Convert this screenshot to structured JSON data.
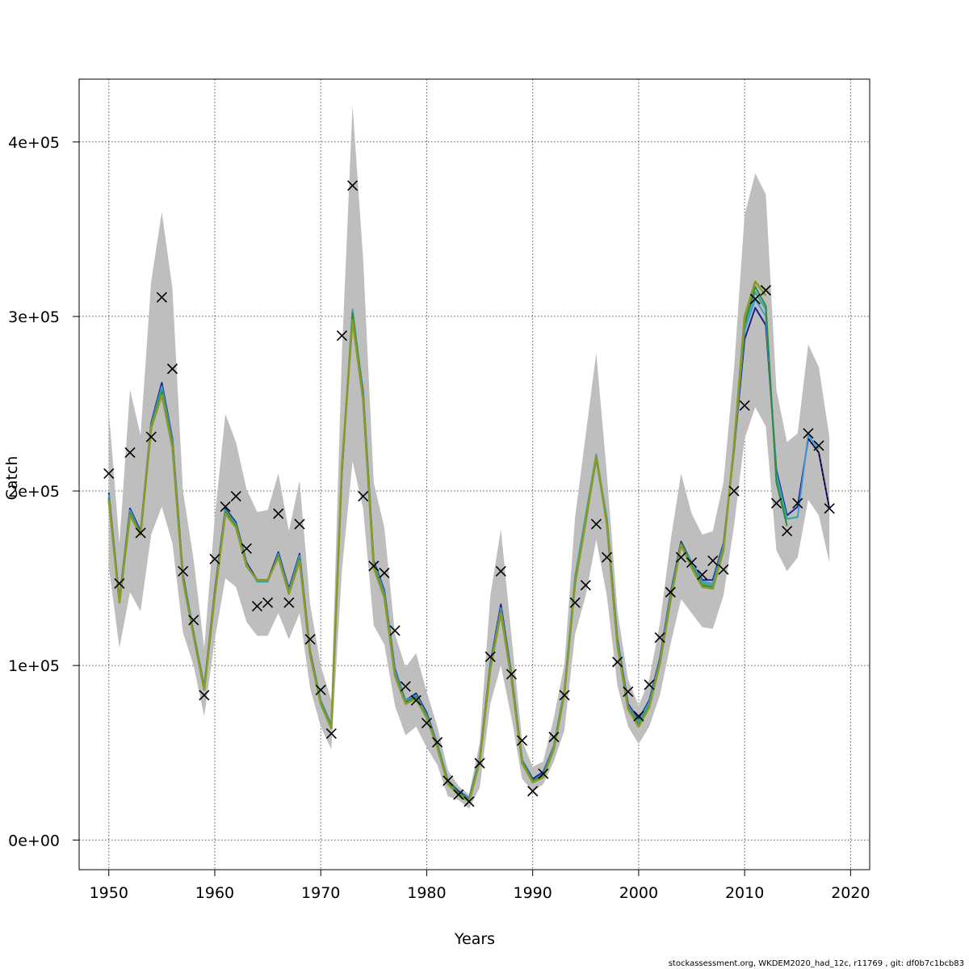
{
  "chart_data": {
    "type": "line",
    "title": "",
    "xlabel": "Years",
    "ylabel": "Catch",
    "xlim": [
      1947.2,
      2021.8
    ],
    "ylim": [
      -17000,
      436000
    ],
    "x_ticks": [
      1950,
      1960,
      1970,
      1980,
      1990,
      2000,
      2010,
      2020
    ],
    "y_ticks": [
      0,
      100000,
      200000,
      300000,
      400000
    ],
    "x_tick_labels": [
      "1950",
      "1960",
      "1970",
      "1980",
      "1990",
      "2000",
      "2010",
      "2020"
    ],
    "y_tick_labels": [
      "0e+00",
      "1e+05",
      "2e+05",
      "3e+05",
      "4e+05"
    ],
    "grid": true,
    "colors": {
      "band": "#bebebe",
      "observed": "#000000",
      "series": [
        "#1f1f8a",
        "#3a9bd6",
        "#3aa79a",
        "#2e8b3a",
        "#8a9a2a"
      ]
    },
    "confidence_band": {
      "x": [
        1950,
        1951,
        1952,
        1953,
        1954,
        1955,
        1956,
        1957,
        1958,
        1959,
        1960,
        1961,
        1962,
        1963,
        1964,
        1965,
        1966,
        1967,
        1968,
        1969,
        1970,
        1971,
        1972,
        1973,
        1974,
        1975,
        1976,
        1977,
        1978,
        1979,
        1980,
        1981,
        1982,
        1983,
        1984,
        1985,
        1986,
        1987,
        1988,
        1989,
        1990,
        1991,
        1992,
        1993,
        1994,
        1995,
        1996,
        1997,
        1998,
        1999,
        2000,
        2001,
        2002,
        2003,
        2004,
        2005,
        2006,
        2007,
        2008,
        2009,
        2010,
        2011,
        2012,
        2013,
        2014,
        2015,
        2016,
        2017,
        2018
      ],
      "lower": [
        157000,
        110000,
        142000,
        131000,
        175000,
        191000,
        170000,
        119000,
        100000,
        71000,
        115000,
        150000,
        145000,
        125000,
        117000,
        117000,
        130000,
        115000,
        130000,
        87000,
        65000,
        52000,
        155000,
        217000,
        190000,
        123000,
        112000,
        77000,
        60000,
        65000,
        53000,
        43000,
        25000,
        23000,
        18000,
        30000,
        78000,
        100000,
        70000,
        35000,
        28000,
        32000,
        45000,
        63000,
        118000,
        140000,
        172000,
        140000,
        88000,
        65000,
        55000,
        65000,
        83000,
        112000,
        138000,
        130000,
        122000,
        121000,
        140000,
        180000,
        230000,
        248000,
        237000,
        166000,
        154000,
        162000,
        195000,
        186000,
        159000
      ],
      "upper": [
        246000,
        170000,
        258000,
        232000,
        320000,
        360000,
        316000,
        200000,
        161000,
        110000,
        185000,
        244000,
        228000,
        201000,
        188000,
        189000,
        210000,
        177000,
        206000,
        135000,
        100000,
        80000,
        280000,
        421000,
        333000,
        205000,
        179000,
        118000,
        99000,
        107000,
        85000,
        65000,
        40000,
        31000,
        26000,
        56000,
        140000,
        178000,
        117000,
        57000,
        42000,
        45000,
        70000,
        101000,
        185000,
        232000,
        279000,
        210000,
        131000,
        92000,
        77000,
        92000,
        124000,
        171000,
        210000,
        187000,
        175000,
        177000,
        205000,
        270000,
        358000,
        382000,
        370000,
        258000,
        228000,
        233000,
        284000,
        271000,
        231000
      ]
    },
    "observed": {
      "name": "",
      "x": [
        1950,
        1951,
        1952,
        1953,
        1954,
        1955,
        1956,
        1957,
        1958,
        1959,
        1960,
        1961,
        1962,
        1963,
        1964,
        1965,
        1966,
        1967,
        1968,
        1969,
        1970,
        1971,
        1972,
        1973,
        1974,
        1975,
        1976,
        1977,
        1978,
        1979,
        1980,
        1981,
        1982,
        1983,
        1984,
        1985,
        1986,
        1987,
        1988,
        1989,
        1990,
        1991,
        1992,
        1993,
        1994,
        1995,
        1996,
        1997,
        1998,
        1999,
        2000,
        2001,
        2002,
        2003,
        2004,
        2005,
        2006,
        2007,
        2008,
        2009,
        2010,
        2011,
        2012,
        2013,
        2014,
        2015,
        2016,
        2017,
        2018
      ],
      "values": [
        210000,
        147000,
        222000,
        176000,
        231000,
        311000,
        270000,
        154000,
        126000,
        83000,
        161000,
        191000,
        197000,
        167000,
        134000,
        136000,
        187000,
        136000,
        181000,
        115000,
        86000,
        61000,
        289000,
        375000,
        197000,
        157000,
        153000,
        120000,
        88000,
        80000,
        67000,
        56000,
        34000,
        26000,
        22000,
        44000,
        105000,
        154000,
        95000,
        57000,
        28000,
        38000,
        59000,
        83000,
        136000,
        146000,
        181000,
        162000,
        102000,
        85000,
        71000,
        89000,
        116000,
        142000,
        162000,
        159000,
        152000,
        160000,
        155000,
        200000,
        249000,
        310000,
        315000,
        193000,
        177000,
        193000,
        233000,
        226000,
        190000
      ]
    },
    "series": [
      {
        "name": "",
        "x": [
          1950,
          1951,
          1952,
          1953,
          1954,
          1955,
          1956,
          1957,
          1958,
          1959,
          1960,
          1961,
          1962,
          1963,
          1964,
          1965,
          1966,
          1967,
          1968,
          1969,
          1970,
          1971,
          1972,
          1973,
          1974,
          1975,
          1976,
          1977,
          1978,
          1979,
          1980,
          1981,
          1982,
          1983,
          1984,
          1985,
          1986,
          1987,
          1988,
          1989,
          1990,
          1991,
          1992,
          1993,
          1994,
          1995,
          1996,
          1997,
          1998,
          1999,
          2000,
          2001,
          2002,
          2003,
          2004,
          2005,
          2006,
          2007,
          2008,
          2009,
          2010,
          2011,
          2012,
          2013,
          2014,
          2015,
          2016,
          2017,
          2018
        ],
        "values": [
          199000,
          138000,
          190000,
          177000,
          239000,
          262000,
          230000,
          152000,
          119000,
          88000,
          143000,
          190000,
          182000,
          159000,
          149000,
          149000,
          165000,
          144000,
          164000,
          108000,
          80000,
          66000,
          211000,
          301000,
          257000,
          160000,
          143000,
          98000,
          80000,
          84000,
          73000,
          55000,
          34000,
          28000,
          24000,
          47000,
          101000,
          135000,
          95000,
          46000,
          35000,
          39000,
          54000,
          86000,
          150000,
          185000,
          220000,
          184000,
          115000,
          78000,
          69000,
          80000,
          104000,
          141000,
          171000,
          159000,
          149000,
          149000,
          170000,
          223000,
          287000,
          305000,
          295000,
          212000,
          186000,
          191000,
          230000,
          222000,
          190000
        ]
      },
      {
        "name": "",
        "x": [
          1950,
          1951,
          1952,
          1953,
          1954,
          1955,
          1956,
          1957,
          1958,
          1959,
          1960,
          1961,
          1962,
          1963,
          1964,
          1965,
          1966,
          1967,
          1968,
          1969,
          1970,
          1971,
          1972,
          1973,
          1974,
          1975,
          1976,
          1977,
          1978,
          1979,
          1980,
          1981,
          1982,
          1983,
          1984,
          1985,
          1986,
          1987,
          1988,
          1989,
          1990,
          1991,
          1992,
          1993,
          1994,
          1995,
          1996,
          1997,
          1998,
          1999,
          2000,
          2001,
          2002,
          2003,
          2004,
          2005,
          2006,
          2007,
          2008,
          2009,
          2010,
          2011,
          2012,
          2013,
          2014,
          2015,
          2016,
          2017
        ],
        "values": [
          198000,
          138000,
          189000,
          176000,
          238000,
          260000,
          229000,
          151000,
          119000,
          88000,
          142000,
          189000,
          181000,
          158000,
          148000,
          148000,
          164000,
          143000,
          163000,
          107000,
          80000,
          66000,
          212000,
          303000,
          256000,
          159000,
          142000,
          97000,
          80000,
          83000,
          72000,
          55000,
          34000,
          27000,
          24000,
          47000,
          100000,
          133000,
          94000,
          46000,
          34000,
          38000,
          54000,
          86000,
          151000,
          186000,
          221000,
          184000,
          114000,
          77000,
          68000,
          79000,
          103000,
          140000,
          170000,
          159000,
          148000,
          147000,
          169000,
          224000,
          292000,
          310000,
          300000,
          210000,
          184000,
          185000,
          232000,
          224000
        ]
      },
      {
        "name": "",
        "x": [
          1950,
          1951,
          1952,
          1953,
          1954,
          1955,
          1956,
          1957,
          1958,
          1959,
          1960,
          1961,
          1962,
          1963,
          1964,
          1965,
          1966,
          1967,
          1968,
          1969,
          1970,
          1971,
          1972,
          1973,
          1974,
          1975,
          1976,
          1977,
          1978,
          1979,
          1980,
          1981,
          1982,
          1983,
          1984,
          1985,
          1986,
          1987,
          1988,
          1989,
          1990,
          1991,
          1992,
          1993,
          1994,
          1995,
          1996,
          1997,
          1998,
          1999,
          2000,
          2001,
          2002,
          2003,
          2004,
          2005,
          2006,
          2007,
          2008,
          2009,
          2010,
          2011,
          2012,
          2013,
          2014,
          2015
        ],
        "values": [
          197000,
          137000,
          188000,
          176000,
          238000,
          258000,
          228000,
          150000,
          118000,
          87000,
          141000,
          189000,
          181000,
          158000,
          148000,
          148000,
          163000,
          142000,
          162000,
          107000,
          79000,
          65000,
          213000,
          304000,
          255000,
          158000,
          141000,
          96000,
          79000,
          82000,
          71000,
          54000,
          33000,
          27000,
          23000,
          46000,
          99000,
          132000,
          93000,
          45000,
          34000,
          37000,
          53000,
          85000,
          150000,
          186000,
          220000,
          183000,
          113000,
          76000,
          67000,
          78000,
          102000,
          139000,
          170000,
          158000,
          147000,
          146000,
          168000,
          224000,
          294000,
          314000,
          304000,
          208000,
          184000,
          185000
        ]
      },
      {
        "name": "",
        "x": [
          1950,
          1951,
          1952,
          1953,
          1954,
          1955,
          1956,
          1957,
          1958,
          1959,
          1960,
          1961,
          1962,
          1963,
          1964,
          1965,
          1966,
          1967,
          1968,
          1969,
          1970,
          1971,
          1972,
          1973,
          1974,
          1975,
          1976,
          1977,
          1978,
          1979,
          1980,
          1981,
          1982,
          1983,
          1984,
          1985,
          1986,
          1987,
          1988,
          1989,
          1990,
          1991,
          1992,
          1993,
          1994,
          1995,
          1996,
          1997,
          1998,
          1999,
          2000,
          2001,
          2002,
          2003,
          2004,
          2005,
          2006,
          2007,
          2008,
          2009,
          2010,
          2011,
          2012,
          2013,
          2014
        ],
        "values": [
          196000,
          137000,
          187000,
          176000,
          237000,
          257000,
          227000,
          150000,
          118000,
          87000,
          141000,
          188000,
          180000,
          157000,
          149000,
          149000,
          163000,
          142000,
          161000,
          106000,
          79000,
          65000,
          214000,
          302000,
          254000,
          157000,
          140000,
          95000,
          79000,
          82000,
          71000,
          54000,
          33000,
          27000,
          23000,
          46000,
          99000,
          131000,
          93000,
          45000,
          34000,
          37000,
          53000,
          85000,
          148000,
          183000,
          218000,
          182000,
          112000,
          76000,
          66000,
          77000,
          102000,
          138000,
          170000,
          157000,
          146000,
          145000,
          167000,
          224000,
          296000,
          317000,
          306000,
          205000,
          180000
        ]
      },
      {
        "name": "",
        "x": [
          1950,
          1951,
          1952,
          1953,
          1954,
          1955,
          1956,
          1957,
          1958,
          1959,
          1960,
          1961,
          1962,
          1963,
          1964,
          1965,
          1966,
          1967,
          1968,
          1969,
          1970,
          1971,
          1972,
          1973,
          1974,
          1975,
          1976,
          1977,
          1978,
          1979,
          1980,
          1981,
          1982,
          1983,
          1984,
          1985,
          1986,
          1987,
          1988,
          1989,
          1990,
          1991,
          1992,
          1993,
          1994,
          1995,
          1996,
          1997,
          1998,
          1999,
          2000,
          2001,
          2002,
          2003,
          2004,
          2005,
          2006,
          2007,
          2008,
          2009,
          2010,
          2011,
          2012
        ],
        "values": [
          195000,
          136000,
          186000,
          175000,
          236000,
          255000,
          225000,
          149000,
          117000,
          86000,
          140000,
          187000,
          179000,
          157000,
          149000,
          149000,
          162000,
          141000,
          160000,
          106000,
          78000,
          64000,
          215000,
          298000,
          252000,
          156000,
          139000,
          94000,
          78000,
          81000,
          70000,
          53000,
          32000,
          26000,
          22000,
          45000,
          98000,
          130000,
          92000,
          44000,
          33000,
          36000,
          52000,
          84000,
          147000,
          182000,
          220000,
          181000,
          111000,
          75000,
          65000,
          76000,
          101000,
          137000,
          169000,
          156000,
          145000,
          144000,
          166000,
          226000,
          300000,
          320000,
          312000
        ]
      }
    ],
    "footer": "stockassessment.org, WKDEM2020_had_12c, r11769 , git: df0b7c1bcb83"
  }
}
